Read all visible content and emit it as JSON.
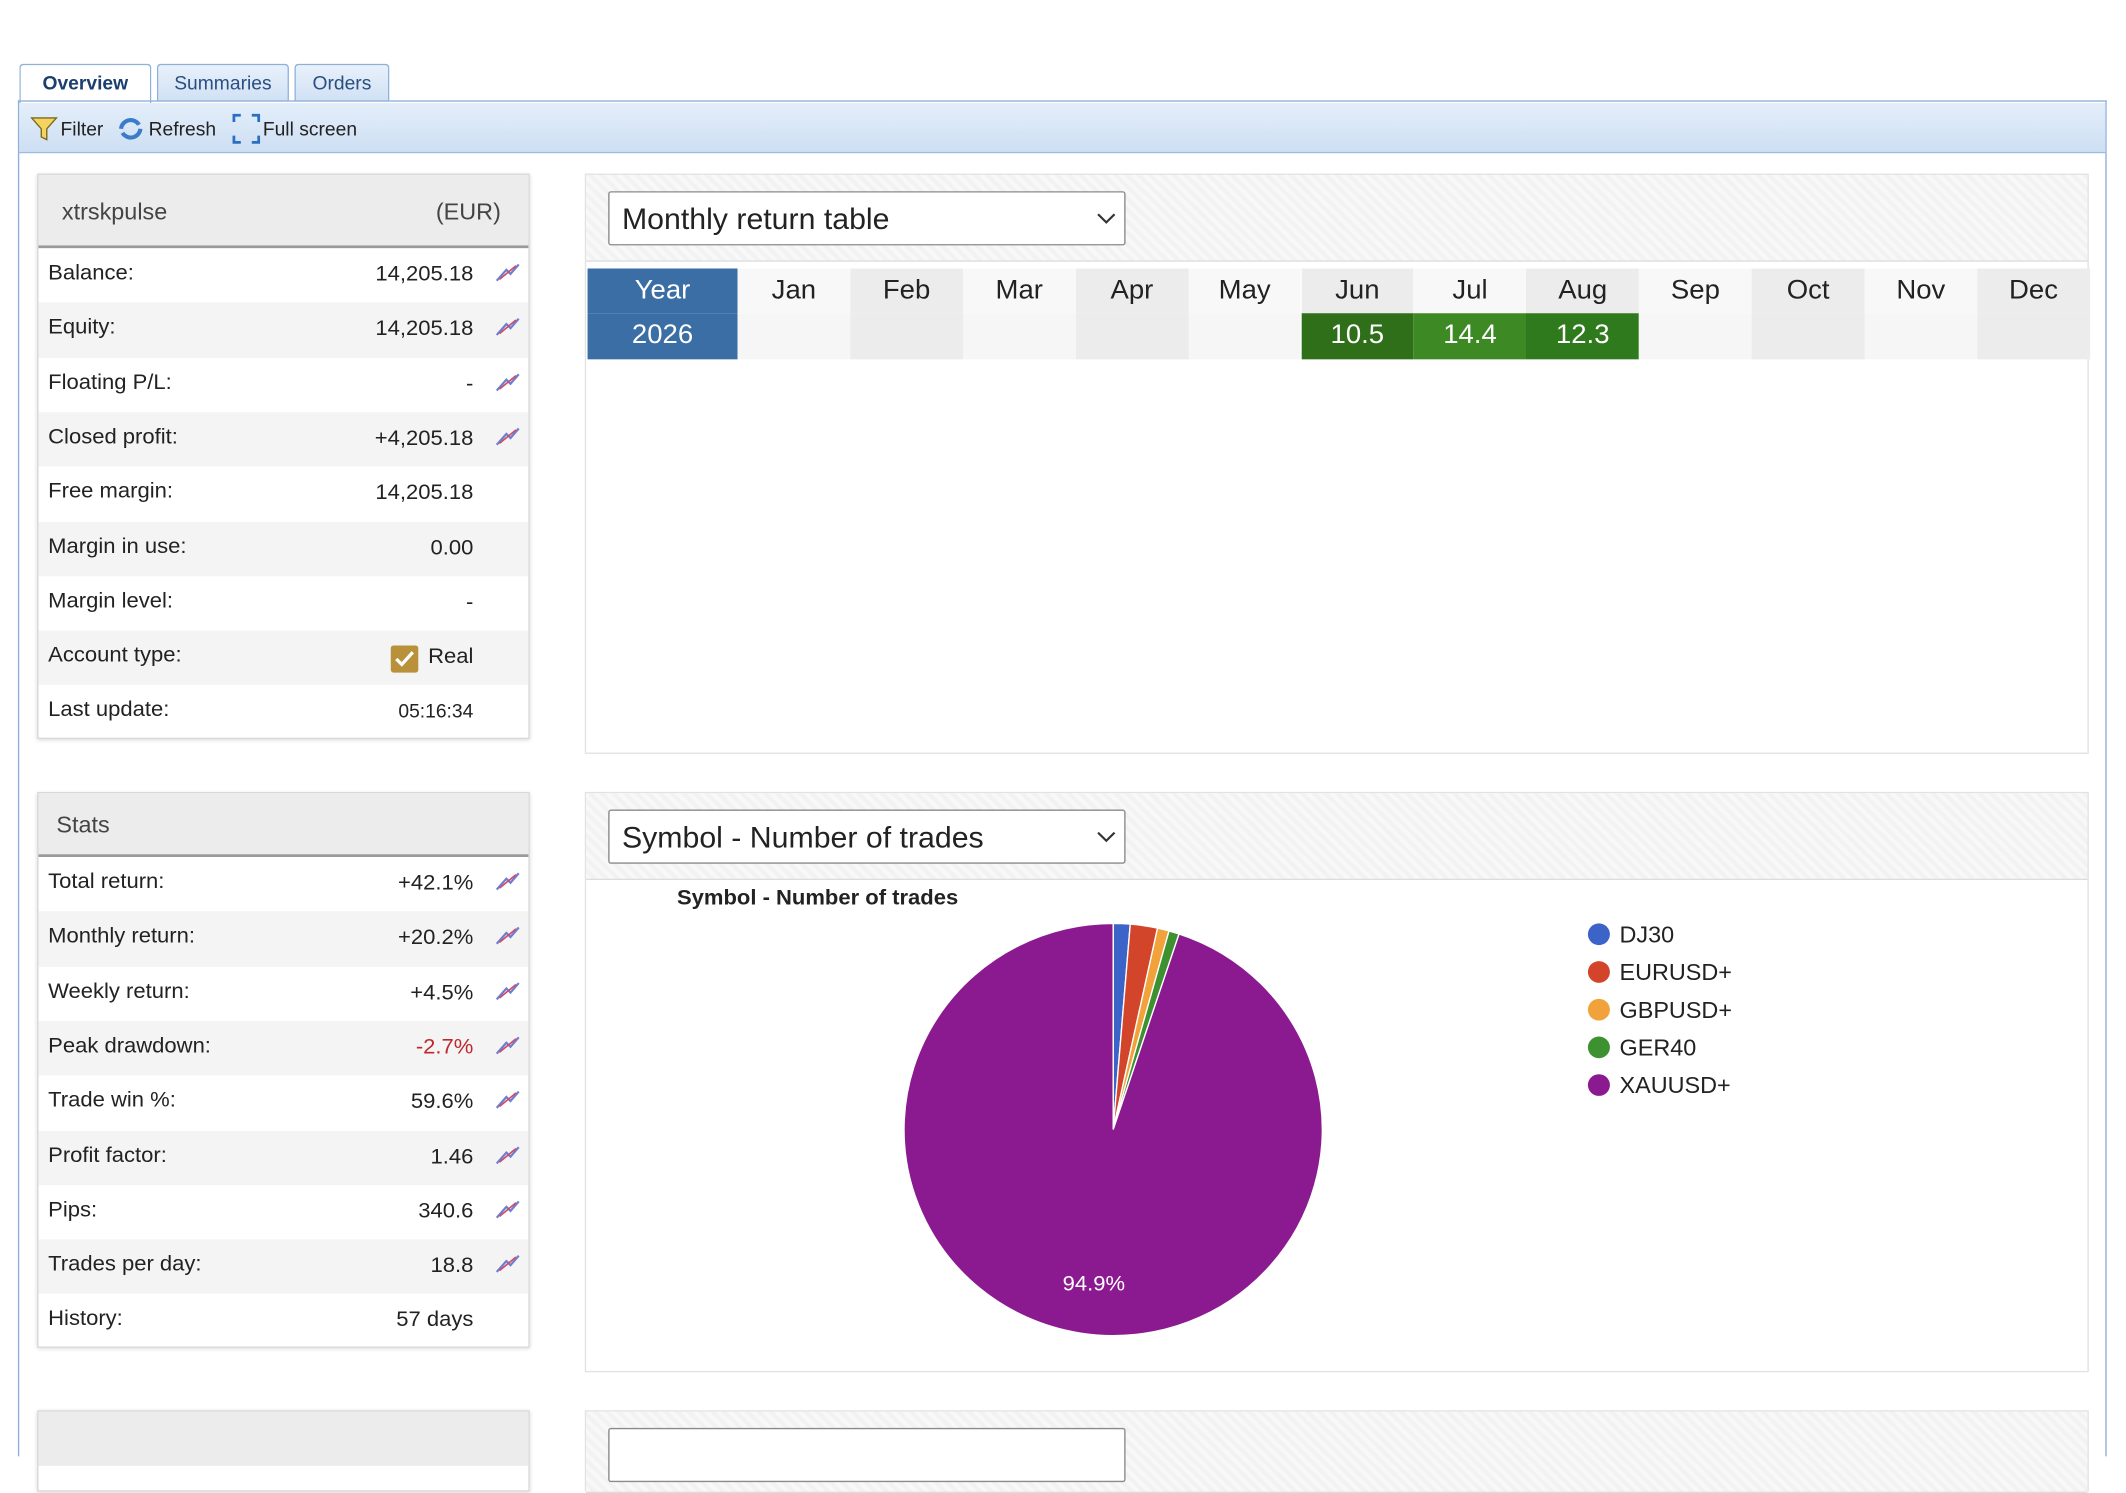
{
  "tabs": [
    "Overview",
    "Summaries",
    "Orders"
  ],
  "toolbar": [
    "Filter",
    "Refresh",
    "Full screen"
  ],
  "account": {
    "name": "xtrskpulse",
    "currency": "(EUR)",
    "rows": [
      [
        "Balance:",
        "14,205.18"
      ],
      [
        "Equity:",
        "14,205.18"
      ],
      [
        "Floating P/L:",
        "-"
      ],
      [
        "Closed profit:",
        "+4,205.18"
      ],
      [
        "Free margin:",
        "14,205.18"
      ],
      [
        "Margin in use:",
        "0.00"
      ],
      [
        "Margin level:",
        "-"
      ],
      [
        "Account type:",
        "Real"
      ],
      [
        "Last update:",
        "05:16:34"
      ]
    ]
  },
  "stats": {
    "title": "Stats",
    "rows": [
      [
        "Total return:",
        "+42.1%"
      ],
      [
        "Monthly return:",
        "+20.2%"
      ],
      [
        "Weekly return:",
        "+4.5%"
      ],
      [
        "Peak drawdown:",
        "-2.7%"
      ],
      [
        "Trade win %:",
        "59.6%"
      ],
      [
        "Profit factor:",
        "1.46"
      ],
      [
        "Pips:",
        "340.6"
      ],
      [
        "Trades per day:",
        "18.8"
      ],
      [
        "History:",
        "57 days"
      ]
    ]
  },
  "monthly": {
    "selector": "Monthly return table",
    "header": [
      "Year",
      "Jan",
      "Feb",
      "Mar",
      "Apr",
      "May",
      "Jun",
      "Jul",
      "Aug",
      "Sep",
      "Oct",
      "Nov",
      "Dec"
    ],
    "rows": [
      [
        "2026",
        null,
        null,
        null,
        null,
        null,
        "10.5",
        "14.4",
        "12.3",
        null,
        null,
        null,
        null
      ]
    ]
  },
  "pie_panel": {
    "selector": "Symbol - Number of trades"
  },
  "chart_data": {
    "type": "pie",
    "title": "Symbol - Number of trades",
    "categories": [
      "DJ30",
      "EURUSD+",
      "GBPUSD+",
      "GER40",
      "XAUUSD+"
    ],
    "values": [
      1.3,
      2.1,
      0.9,
      0.8,
      94.9
    ],
    "value_labels": [
      null,
      null,
      null,
      null,
      "94.9%"
    ],
    "colors": [
      "#3b63c8",
      "#d2452b",
      "#f2a23a",
      "#3d9130",
      "#8b1a91"
    ]
  }
}
